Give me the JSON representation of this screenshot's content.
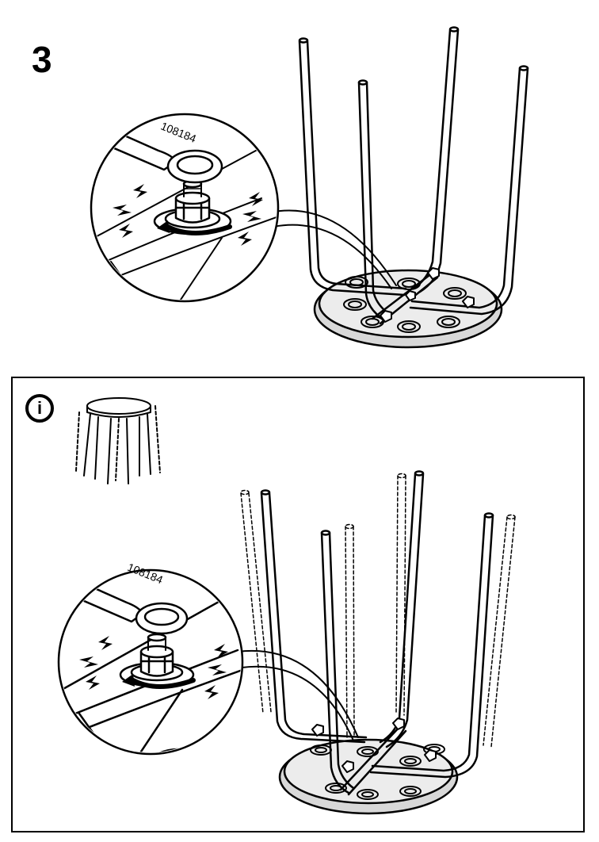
{
  "step": {
    "number": "3"
  },
  "wrench": {
    "part_number_top": "108184",
    "part_number_bottom": "108184"
  },
  "info": {
    "icon_label": "i"
  },
  "icons": {
    "info": "info-icon",
    "tool": "wrench-icon",
    "rotation": "clockwise-arrow-icon",
    "motion": "lightning-spark-icon"
  },
  "colors": {
    "line": "#000000",
    "background": "#ffffff",
    "shade": "#d0d0d0"
  }
}
